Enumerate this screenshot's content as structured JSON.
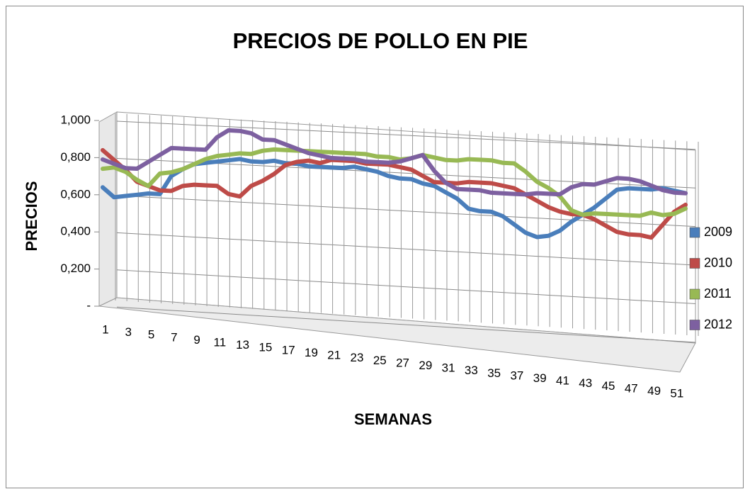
{
  "chart_data": {
    "type": "line",
    "title": "PRECIOS DE POLLO EN PIE",
    "x_label": "SEMANAS",
    "y_label": "PRECIOS",
    "categories": [
      "1",
      null,
      "3",
      null,
      "5",
      null,
      "7",
      null,
      "9",
      null,
      "11",
      null,
      "13",
      null,
      "15",
      null,
      "17",
      null,
      "19",
      null,
      "21",
      null,
      "23",
      null,
      "25",
      null,
      "27",
      null,
      "29",
      null,
      "31",
      null,
      "33",
      null,
      "35",
      null,
      "37",
      null,
      "39",
      null,
      "41",
      null,
      "43",
      null,
      "45",
      null,
      "47",
      null,
      "49",
      null,
      "51",
      null
    ],
    "ylim": [
      0,
      1
    ],
    "yticks": [
      {
        "value": 0,
        "label": "-"
      },
      {
        "value": 0.2,
        "label": "0,200"
      },
      {
        "value": 0.4,
        "label": "0,400"
      },
      {
        "value": 0.6,
        "label": "0,600"
      },
      {
        "value": 0.8,
        "label": "0,800"
      },
      {
        "value": 1,
        "label": "1,000"
      }
    ],
    "grid": true,
    "legend": "right",
    "series": [
      {
        "name": "2009",
        "color": "#4a7ebb",
        "values": [
          0.64,
          0.59,
          0.6,
          0.61,
          0.62,
          0.62,
          0.72,
          0.76,
          0.79,
          0.8,
          0.81,
          0.82,
          0.83,
          0.82,
          0.82,
          0.83,
          0.82,
          0.82,
          0.81,
          0.81,
          0.81,
          0.81,
          0.82,
          0.81,
          0.8,
          0.78,
          0.77,
          0.77,
          0.75,
          0.74,
          0.71,
          0.68,
          0.63,
          0.62,
          0.62,
          0.6,
          0.56,
          0.52,
          0.5,
          0.51,
          0.54,
          0.59,
          0.63,
          0.67,
          0.72,
          0.77,
          0.78,
          0.78,
          0.78,
          0.79,
          0.78,
          0.77
        ]
      },
      {
        "name": "2010",
        "color": "#be4b48",
        "values": [
          0.84,
          0.79,
          0.74,
          0.68,
          0.66,
          0.64,
          0.64,
          0.67,
          0.68,
          0.68,
          0.68,
          0.64,
          0.63,
          0.69,
          0.72,
          0.76,
          0.81,
          0.83,
          0.84,
          0.83,
          0.85,
          0.85,
          0.85,
          0.84,
          0.84,
          0.84,
          0.83,
          0.82,
          0.79,
          0.76,
          0.76,
          0.76,
          0.77,
          0.77,
          0.77,
          0.76,
          0.75,
          0.72,
          0.69,
          0.66,
          0.64,
          0.63,
          0.63,
          0.61,
          0.58,
          0.55,
          0.54,
          0.54,
          0.53,
          0.6,
          0.67,
          0.71
        ]
      },
      {
        "name": "2011",
        "color": "#98b954",
        "values": [
          0.74,
          0.75,
          0.73,
          0.69,
          0.66,
          0.73,
          0.74,
          0.76,
          0.79,
          0.82,
          0.84,
          0.85,
          0.86,
          0.86,
          0.88,
          0.89,
          0.89,
          0.89,
          0.89,
          0.89,
          0.89,
          0.89,
          0.89,
          0.89,
          0.88,
          0.88,
          0.87,
          0.88,
          0.9,
          0.89,
          0.88,
          0.88,
          0.89,
          0.89,
          0.89,
          0.88,
          0.88,
          0.84,
          0.79,
          0.76,
          0.72,
          0.65,
          0.63,
          0.64,
          0.64,
          0.64,
          0.64,
          0.64,
          0.66,
          0.65,
          0.66,
          0.69
        ]
      },
      {
        "name": "2012",
        "color": "#7d60a0",
        "values": [
          0.79,
          0.77,
          0.75,
          0.75,
          0.79,
          0.83,
          0.87,
          0.87,
          0.87,
          0.87,
          0.94,
          0.98,
          0.98,
          0.97,
          0.94,
          0.94,
          0.92,
          0.9,
          0.88,
          0.87,
          0.86,
          0.86,
          0.86,
          0.85,
          0.85,
          0.85,
          0.86,
          0.88,
          0.9,
          0.82,
          0.76,
          0.73,
          0.73,
          0.73,
          0.72,
          0.72,
          0.72,
          0.72,
          0.73,
          0.73,
          0.73,
          0.77,
          0.79,
          0.79,
          0.81,
          0.83,
          0.83,
          0.82,
          0.8,
          0.78,
          0.77,
          0.77
        ]
      }
    ]
  }
}
